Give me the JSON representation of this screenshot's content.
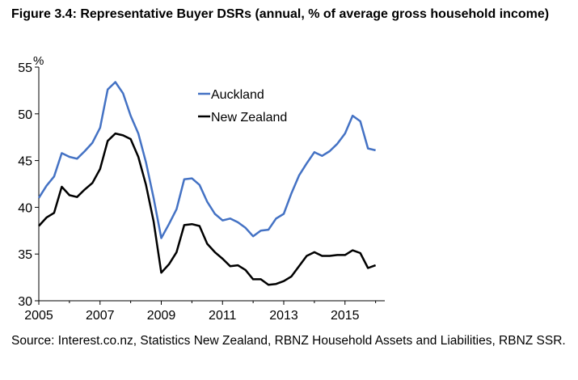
{
  "title": "Figure 3.4: Representative Buyer DSRs (annual, % of average gross household income)",
  "source": "Source: Interest.co.nz, Statistics New Zealand, RBNZ Household Assets and Liabilities, RBNZ SSR.",
  "chart_data": {
    "type": "line",
    "ylabel": "%",
    "ylim": [
      30,
      55
    ],
    "yticks": [
      "30",
      "35",
      "40",
      "45",
      "50",
      "55"
    ],
    "xlim": [
      2005,
      2016.3
    ],
    "xticks": [
      "2005",
      "2007",
      "2009",
      "2011",
      "2013",
      "2015"
    ],
    "grid": false,
    "legend": "top-center",
    "series": [
      {
        "name": "Auckland",
        "color": "#4472c4",
        "x": [
          2005.0,
          2005.25,
          2005.5,
          2005.75,
          2006.0,
          2006.25,
          2006.5,
          2006.75,
          2007.0,
          2007.25,
          2007.5,
          2007.75,
          2008.0,
          2008.25,
          2008.5,
          2008.75,
          2009.0,
          2009.25,
          2009.5,
          2009.75,
          2010.0,
          2010.25,
          2010.5,
          2010.75,
          2011.0,
          2011.25,
          2011.5,
          2011.75,
          2012.0,
          2012.25,
          2012.5,
          2012.75,
          2013.0,
          2013.25,
          2013.5,
          2013.75,
          2014.0,
          2014.25,
          2014.5,
          2014.75,
          2015.0,
          2015.25,
          2015.5,
          2015.75,
          2016.0
        ],
        "values": [
          41.0,
          42.3,
          43.3,
          45.8,
          45.4,
          45.2,
          46.0,
          46.9,
          48.5,
          52.6,
          53.4,
          52.2,
          49.8,
          47.9,
          44.8,
          41.0,
          36.7,
          38.2,
          39.8,
          43.0,
          43.1,
          42.4,
          40.6,
          39.3,
          38.6,
          38.8,
          38.4,
          37.8,
          36.9,
          37.5,
          37.6,
          38.8,
          39.3,
          41.5,
          43.4,
          44.7,
          45.9,
          45.5,
          46.0,
          46.8,
          47.9,
          49.8,
          49.2,
          46.3,
          46.1
        ]
      },
      {
        "name": "New Zealand",
        "color": "#000000",
        "x": [
          2005.0,
          2005.25,
          2005.5,
          2005.75,
          2006.0,
          2006.25,
          2006.5,
          2006.75,
          2007.0,
          2007.25,
          2007.5,
          2007.75,
          2008.0,
          2008.25,
          2008.5,
          2008.75,
          2009.0,
          2009.25,
          2009.5,
          2009.75,
          2010.0,
          2010.25,
          2010.5,
          2010.75,
          2011.0,
          2011.25,
          2011.5,
          2011.75,
          2012.0,
          2012.25,
          2012.5,
          2012.75,
          2013.0,
          2013.25,
          2013.5,
          2013.75,
          2014.0,
          2014.25,
          2014.5,
          2014.75,
          2015.0,
          2015.25,
          2015.5,
          2015.75,
          2016.0
        ],
        "values": [
          38.0,
          38.9,
          39.4,
          42.2,
          41.3,
          41.1,
          41.9,
          42.6,
          44.1,
          47.1,
          47.9,
          47.7,
          47.3,
          45.4,
          42.4,
          38.5,
          33.0,
          33.9,
          35.2,
          38.1,
          38.2,
          38.0,
          36.1,
          35.2,
          34.5,
          33.7,
          33.8,
          33.3,
          32.3,
          32.3,
          31.7,
          31.8,
          32.1,
          32.6,
          33.7,
          34.8,
          35.2,
          34.8,
          34.8,
          34.9,
          34.9,
          35.4,
          35.1,
          33.5,
          33.8
        ]
      }
    ]
  }
}
